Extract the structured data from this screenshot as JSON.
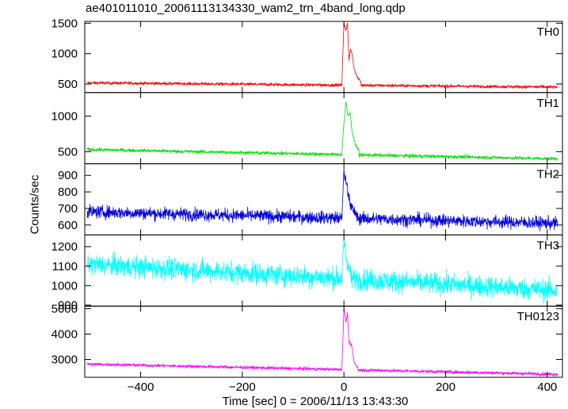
{
  "chart_data": {
    "type": "line",
    "title": "ae401011010_20061113134330_wam2_trn_4band_long.qdp",
    "xlabel": "Time [sec] 0 = 2006/11/13 13:43:30",
    "ylabel": "Counts/sec",
    "xlim": [
      -510,
      430
    ],
    "x_ticks": [
      "−400",
      "−200",
      "0",
      "200",
      "400"
    ],
    "x_tick_values": [
      -400,
      -200,
      0,
      200,
      400
    ],
    "panels": [
      {
        "name": "TH0",
        "color": "#ff0000",
        "ylim": [
          360,
          1530
        ],
        "y_ticks": [
          "500",
          "1000",
          "1500"
        ],
        "y_tick_values": [
          500,
          1000,
          1500
        ],
        "baseline_start": 520,
        "baseline_end": 450,
        "noise": 18,
        "peaks": [
          [
            0,
            1500
          ],
          [
            5,
            1400
          ],
          [
            8,
            1500
          ],
          [
            14,
            960
          ],
          [
            18,
            1100
          ],
          [
            25,
            700
          ],
          [
            35,
            520
          ]
        ],
        "peak_shape": [
          [
            -4,
            520
          ],
          [
            0,
            1500
          ],
          [
            4,
            1380
          ],
          [
            7,
            1500
          ],
          [
            10,
            900
          ],
          [
            13,
            1080
          ],
          [
            16,
            1000
          ],
          [
            20,
            760
          ],
          [
            26,
            620
          ],
          [
            34,
            530
          ]
        ]
      },
      {
        "name": "TH1",
        "color": "#00e000",
        "ylim": [
          330,
          1330
        ],
        "y_ticks": [
          "500",
          "1000"
        ],
        "y_tick_values": [
          500,
          1000
        ],
        "baseline_start": 530,
        "baseline_end": 400,
        "noise": 18,
        "peak_shape": [
          [
            -4,
            480
          ],
          [
            0,
            900
          ],
          [
            4,
            1200
          ],
          [
            8,
            1000
          ],
          [
            12,
            1050
          ],
          [
            16,
            780
          ],
          [
            22,
            620
          ],
          [
            30,
            500
          ]
        ]
      },
      {
        "name": "TH2",
        "color": "#0000dd",
        "ylim": [
          540,
          970
        ],
        "y_ticks": [
          "600",
          "700",
          "800",
          "900"
        ],
        "y_tick_values": [
          600,
          700,
          800,
          900
        ],
        "baseline_start": 680,
        "baseline_end": 610,
        "noise": 28,
        "peak_shape": [
          [
            -4,
            650
          ],
          [
            0,
            930
          ],
          [
            3,
            870
          ],
          [
            6,
            840
          ],
          [
            9,
            780
          ],
          [
            13,
            720
          ],
          [
            20,
            680
          ],
          [
            28,
            650
          ]
        ]
      },
      {
        "name": "TH3",
        "color": "#00ffff",
        "ylim": [
          895,
          1260
        ],
        "y_ticks": [
          "900",
          "1000",
          "1100",
          "1200"
        ],
        "y_tick_values": [
          900,
          1000,
          1100,
          1200
        ],
        "baseline_start": 1110,
        "baseline_end": 975,
        "noise": 40,
        "peak_shape": [
          [
            -4,
            1050
          ],
          [
            0,
            1240
          ],
          [
            4,
            1150
          ],
          [
            8,
            1100
          ],
          [
            14,
            1060
          ]
        ]
      },
      {
        "name": "TH0123",
        "color": "#ff00ff",
        "ylim": [
          2300,
          5100
        ],
        "y_ticks": [
          "3000",
          "4000",
          "5000"
        ],
        "y_tick_values": [
          3000,
          4000,
          5000
        ],
        "baseline_start": 2820,
        "baseline_end": 2420,
        "noise": 45,
        "peak_shape": [
          [
            -4,
            2600
          ],
          [
            0,
            5000
          ],
          [
            4,
            4500
          ],
          [
            7,
            4800
          ],
          [
            10,
            3700
          ],
          [
            13,
            3600
          ],
          [
            16,
            3500
          ],
          [
            20,
            2900
          ],
          [
            28,
            2650
          ]
        ]
      }
    ]
  }
}
